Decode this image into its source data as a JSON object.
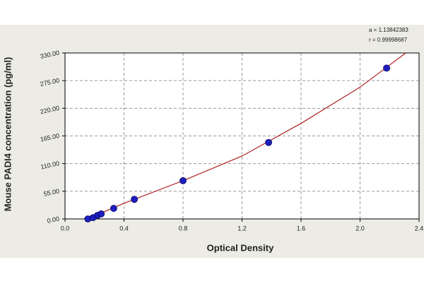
{
  "chart_data": {
    "type": "scatter",
    "xlabel": "Optical Density",
    "ylabel": "Mouse PADI4 concentration (pg/ml)",
    "annotations": [
      "a = 1.13842383",
      "r = 0.99998687"
    ],
    "series": [
      {
        "color": "#1f1fbf",
        "x": [
          0.155,
          0.19,
          0.22,
          0.245,
          0.33,
          0.47,
          0.8,
          1.38,
          2.18
        ],
        "values": [
          0,
          2.5,
          7,
          10,
          21,
          39,
          76,
          152,
          300
        ]
      }
    ],
    "fit_line": {
      "color": "#b22222",
      "x": [
        0.15,
        0.4,
        0.8,
        1.2,
        1.6,
        2.0,
        2.31
      ],
      "values": [
        0,
        31,
        76,
        125,
        190,
        262,
        330
      ]
    },
    "xlim": [
      0,
      2.4
    ],
    "xticks": [
      {
        "value": 0,
        "label": "0.0"
      },
      0.4,
      0.8,
      1.2,
      1.6,
      {
        "value": 2,
        "label": "2.0"
      },
      2.4
    ],
    "ylim": [
      0,
      330
    ],
    "yticks": [
      {
        "value": 0,
        "label": "0.00"
      },
      {
        "value": 55,
        "label": "55.00"
      },
      {
        "value": 110,
        "label": "110.00"
      },
      {
        "value": 165,
        "label": "165.00"
      },
      {
        "value": 220,
        "label": "220.00"
      },
      {
        "value": 275,
        "label": "275.00"
      },
      {
        "value": 330,
        "label": "330.00"
      }
    ],
    "grid": true
  }
}
